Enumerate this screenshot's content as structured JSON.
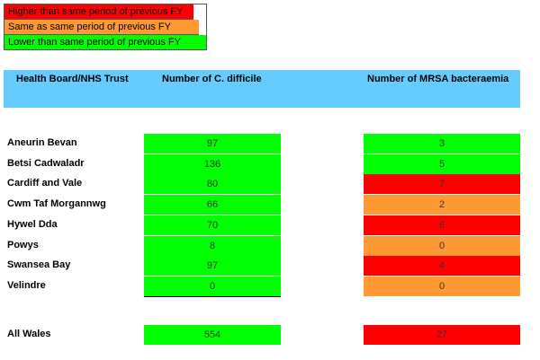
{
  "legend": {
    "higher": {
      "label": "Higher than same period of previous FY",
      "color": "#ff0000"
    },
    "same": {
      "label": "Same as same period of previous FY",
      "color": "#ff9933"
    },
    "lower": {
      "label": "Lower than same period of previous FY",
      "color": "#00ff00"
    }
  },
  "header": {
    "board": "Health Board/NHS Trust",
    "cdiff": "Number of C. difficile",
    "mrsa": "Number of MRSA bacteraemia",
    "color": "#66ccff"
  },
  "rows": [
    {
      "name": "Aneurin Bevan",
      "cdiff": "97",
      "cdiff_status": "lower",
      "mrsa": "3",
      "mrsa_status": "lower"
    },
    {
      "name": "Betsi Cadwaladr",
      "cdiff": "136",
      "cdiff_status": "lower",
      "mrsa": "5",
      "mrsa_status": "lower"
    },
    {
      "name": "Cardiff and Vale",
      "cdiff": "80",
      "cdiff_status": "lower",
      "mrsa": "7",
      "mrsa_status": "higher"
    },
    {
      "name": "Cwm Taf Morgannwg",
      "cdiff": "66",
      "cdiff_status": "lower",
      "mrsa": "2",
      "mrsa_status": "same"
    },
    {
      "name": "Hywel Dda",
      "cdiff": "70",
      "cdiff_status": "lower",
      "mrsa": "6",
      "mrsa_status": "higher"
    },
    {
      "name": "Powys",
      "cdiff": "8",
      "cdiff_status": "lower",
      "mrsa": "0",
      "mrsa_status": "same"
    },
    {
      "name": "Swansea Bay",
      "cdiff": "97",
      "cdiff_status": "lower",
      "mrsa": "4",
      "mrsa_status": "higher"
    },
    {
      "name": "Velindre",
      "cdiff": "0",
      "cdiff_status": "lower",
      "mrsa": "0",
      "mrsa_status": "same"
    }
  ],
  "total": {
    "name": "All Wales",
    "cdiff": "554",
    "cdiff_status": "lower",
    "mrsa": "27",
    "mrsa_status": "higher"
  }
}
